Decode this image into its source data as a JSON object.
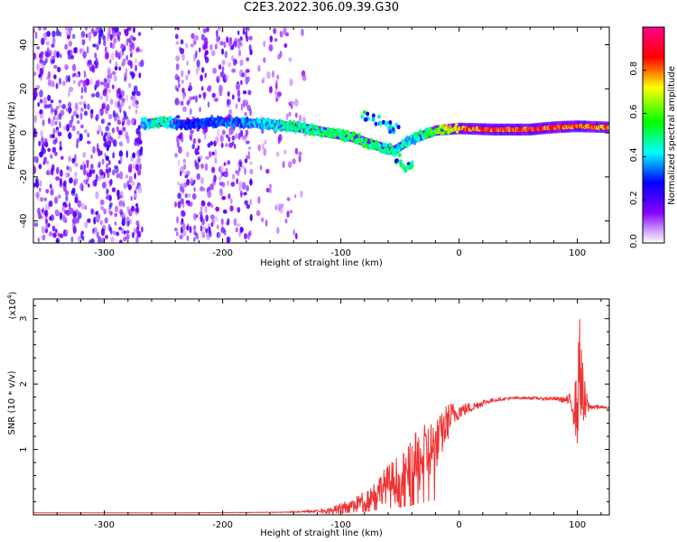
{
  "title": "C2E3.2022.306.09.39.G30",
  "chart_data": [
    {
      "type": "heatmap",
      "xlabel": "Height of straight line (km)",
      "ylabel": "Frequency (Hz)",
      "xlim": [
        -360,
        127
      ],
      "ylim": [
        -50,
        48
      ],
      "x_ticks": [
        -300,
        -200,
        -100,
        0,
        100
      ],
      "y_ticks": [
        -40,
        -20,
        0,
        20,
        40
      ],
      "colorbar": {
        "label": "Normalized spectral amplitude",
        "range": [
          0,
          1
        ],
        "ticks": [
          "0.0",
          "0.2",
          "0.4",
          "0.6",
          "0.8"
        ],
        "colors": [
          "#ffffff",
          "#8800ff",
          "#0000ff",
          "#00ffff",
          "#00ff00",
          "#ffff00",
          "#ff0000",
          "#ff0088"
        ]
      },
      "noise_regions": [
        {
          "x_range": [
            -360,
            -268
          ],
          "density": 0.55
        },
        {
          "x_range": [
            -240,
            -175
          ],
          "density": 0.45
        },
        {
          "x_range": [
            -170,
            -130
          ],
          "density": 0.15
        }
      ],
      "ridge": [
        {
          "x": -268,
          "y": 4,
          "amp": 0.45
        },
        {
          "x": -250,
          "y": 5,
          "amp": 0.55
        },
        {
          "x": -235,
          "y": 4,
          "amp": 0.3
        },
        {
          "x": -200,
          "y": 5,
          "amp": 0.35
        },
        {
          "x": -160,
          "y": 4,
          "amp": 0.45
        },
        {
          "x": -130,
          "y": 2,
          "amp": 0.55
        },
        {
          "x": -110,
          "y": 0,
          "amp": 0.55
        },
        {
          "x": -90,
          "y": -2,
          "amp": 0.6
        },
        {
          "x": -75,
          "y": -5,
          "amp": 0.55
        },
        {
          "x": -55,
          "y": -8,
          "amp": 0.5
        },
        {
          "x": -40,
          "y": -3,
          "amp": 0.45
        },
        {
          "x": -20,
          "y": 1,
          "amp": 0.65
        },
        {
          "x": 0,
          "y": 2,
          "amp": 0.85
        },
        {
          "x": 30,
          "y": 1.5,
          "amp": 0.95
        },
        {
          "x": 60,
          "y": 1.5,
          "amp": 0.95
        },
        {
          "x": 80,
          "y": 2.5,
          "amp": 0.95
        },
        {
          "x": 100,
          "y": 3,
          "amp": 0.9
        },
        {
          "x": 127,
          "y": 2.5,
          "amp": 0.85
        }
      ]
    },
    {
      "type": "line",
      "xlabel": "Height of straight line (km)",
      "ylabel": "SNR (10 * v/v)",
      "y_multiplier": "(x10",
      "y_multiplier_exp": "4",
      "xlim": [
        -360,
        127
      ],
      "ylim": [
        0,
        3.3
      ],
      "x_ticks": [
        -300,
        -200,
        -100,
        0,
        100
      ],
      "y_ticks": [
        1,
        2,
        3
      ],
      "color": "#ee3333",
      "series": [
        {
          "x": [
            -360,
            -250,
            -150,
            -120,
            -105,
            -95,
            -85,
            -75,
            -65,
            -55,
            -45,
            -35,
            -25,
            -20,
            -15,
            -10,
            -5,
            0,
            10,
            20,
            30,
            40,
            50,
            60,
            70,
            80,
            90,
            95,
            100,
            102,
            105,
            110,
            120,
            127
          ],
          "y": [
            0.03,
            0.03,
            0.04,
            0.06,
            0.1,
            0.15,
            0.2,
            0.3,
            0.45,
            0.55,
            0.65,
            0.85,
            1.05,
            1.1,
            1.25,
            1.45,
            1.55,
            1.6,
            1.65,
            1.72,
            1.76,
            1.78,
            1.79,
            1.79,
            1.78,
            1.78,
            1.76,
            1.74,
            1.65,
            2.5,
            1.72,
            1.66,
            1.65,
            1.63
          ],
          "noise": [
            0,
            0,
            0.005,
            0.02,
            0.05,
            0.08,
            0.12,
            0.18,
            0.25,
            0.35,
            0.4,
            0.5,
            0.45,
            0.4,
            0.35,
            0.3,
            0.2,
            0.12,
            0.08,
            0.05,
            0.03,
            0.02,
            0.02,
            0.02,
            0.02,
            0.03,
            0.05,
            0.15,
            0.6,
            0.8,
            0.5,
            0.05,
            0.02,
            0.02
          ]
        }
      ]
    }
  ]
}
